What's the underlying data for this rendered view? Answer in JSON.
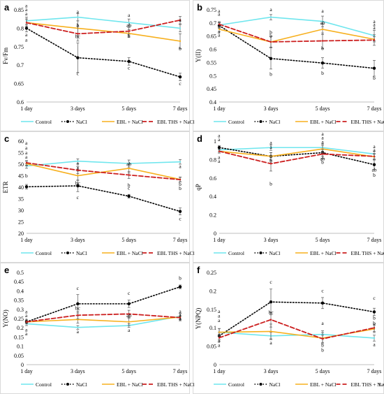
{
  "panels_meta": {
    "series_names": [
      "Control",
      "NaCl",
      "EBL + NaCl",
      "EBL THS + NaCl"
    ],
    "colors": {
      "control": "#6fe6ee",
      "nacl": "#000000",
      "ebl": "#f7b01e",
      "ebl_ths": "#cc1f1f"
    },
    "categories": [
      "1 day",
      "3 days",
      "5 days",
      "7 days"
    ]
  },
  "chart_data": [
    {
      "type": "line",
      "letter": "a",
      "ylabel": "Fv/Fm",
      "categories": [
        "1 day",
        "3 days",
        "5 days",
        "7 days"
      ],
      "ylim": [
        0.6,
        0.85
      ],
      "yticks": [
        0.6,
        0.65,
        0.7,
        0.75,
        0.8,
        0.85
      ],
      "series": [
        {
          "name": "Control",
          "values": [
            0.82,
            0.83,
            0.815,
            0.8
          ],
          "errors": [
            0.01,
            0.01,
            0.01,
            0.01
          ]
        },
        {
          "name": "NaCl",
          "values": [
            0.8,
            0.72,
            0.71,
            0.668
          ],
          "errors": [
            0.01,
            0.04,
            0.01,
            0.01
          ]
        },
        {
          "name": "EBL + NaCl",
          "values": [
            0.815,
            0.8,
            0.786,
            0.765
          ],
          "errors": [
            0.01,
            0.02,
            0.01,
            0.02
          ]
        },
        {
          "name": "EBL THS + NaCl",
          "values": [
            0.815,
            0.785,
            0.792,
            0.822
          ],
          "errors": [
            0.01,
            0.02,
            0.01,
            0.01
          ]
        }
      ],
      "annotations": [
        {
          "x": 0,
          "y": 0.857,
          "text": "a"
        },
        {
          "x": 0,
          "y": 0.846,
          "text": "a"
        },
        {
          "x": 0,
          "y": 0.835,
          "text": "a"
        },
        {
          "x": 0,
          "y": 0.778,
          "text": "a"
        },
        {
          "x": 0,
          "y": 0.764,
          "text": "a"
        },
        {
          "x": 1,
          "y": 0.841,
          "text": "a"
        },
        {
          "x": 1,
          "y": 0.804,
          "text": "b"
        },
        {
          "x": 1,
          "y": 0.773,
          "text": "bc"
        },
        {
          "x": 1,
          "y": 0.673,
          "text": "c"
        },
        {
          "x": 2,
          "y": 0.831,
          "text": "a"
        },
        {
          "x": 2,
          "y": 0.804,
          "text": "ab"
        },
        {
          "x": 2,
          "y": 0.774,
          "text": "b"
        },
        {
          "x": 2,
          "y": 0.688,
          "text": "c"
        },
        {
          "x": 3,
          "y": 0.818,
          "text": "a"
        },
        {
          "x": 3,
          "y": 0.74,
          "text": "b"
        },
        {
          "x": 3,
          "y": 0.645,
          "text": "c"
        }
      ]
    },
    {
      "type": "line",
      "letter": "b",
      "ylabel": "Y(II)",
      "categories": [
        "1 day",
        "3 days",
        "5 days",
        "7 days"
      ],
      "ylim": [
        0.4,
        0.75
      ],
      "yticks": [
        0.4,
        0.45,
        0.5,
        0.55,
        0.6,
        0.65,
        0.7,
        0.75
      ],
      "series": [
        {
          "name": "Control",
          "values": [
            0.692,
            0.722,
            0.706,
            0.652
          ],
          "errors": [
            0.01,
            0.01,
            0.02,
            0.02
          ]
        },
        {
          "name": "NaCl",
          "values": [
            0.69,
            0.565,
            0.548,
            0.528
          ],
          "errors": [
            0.01,
            0.04,
            0.02,
            0.03
          ]
        },
        {
          "name": "EBL + NaCl",
          "values": [
            0.676,
            0.628,
            0.676,
            0.638
          ],
          "errors": [
            0.01,
            0.02,
            0.02,
            0.01
          ]
        },
        {
          "name": "EBL THS + NaCl",
          "values": [
            0.695,
            0.628,
            0.632,
            0.635
          ],
          "errors": [
            0.01,
            0.02,
            0.03,
            0.02
          ]
        }
      ],
      "annotations": [
        {
          "x": 0,
          "y": 0.74,
          "text": "a"
        },
        {
          "x": 0,
          "y": 0.728,
          "text": "a"
        },
        {
          "x": 0,
          "y": 0.66,
          "text": "a"
        },
        {
          "x": 0,
          "y": 0.648,
          "text": "a"
        },
        {
          "x": 1,
          "y": 0.745,
          "text": "a"
        },
        {
          "x": 1,
          "y": 0.658,
          "text": "b"
        },
        {
          "x": 1,
          "y": 0.645,
          "text": "b"
        },
        {
          "x": 1,
          "y": 0.5,
          "text": "b"
        },
        {
          "x": 2,
          "y": 0.74,
          "text": "a"
        },
        {
          "x": 2,
          "y": 0.694,
          "text": "ab"
        },
        {
          "x": 2,
          "y": 0.597,
          "text": "b"
        },
        {
          "x": 2,
          "y": 0.504,
          "text": "b"
        },
        {
          "x": 3,
          "y": 0.7,
          "text": "a"
        },
        {
          "x": 3,
          "y": 0.688,
          "text": "a"
        },
        {
          "x": 3,
          "y": 0.676,
          "text": "a"
        },
        {
          "x": 3,
          "y": 0.485,
          "text": "b"
        }
      ]
    },
    {
      "type": "line",
      "letter": "c",
      "ylabel": "ETR",
      "categories": [
        "1 day",
        "3 days",
        "5 days",
        "7 days"
      ],
      "ylim": [
        20,
        60
      ],
      "yticks": [
        20,
        25,
        30,
        35,
        40,
        45,
        50,
        55,
        60
      ],
      "series": [
        {
          "name": "Control",
          "values": [
            49.2,
            51.3,
            50.3,
            51.0
          ],
          "errors": [
            1,
            1,
            1.5,
            1
          ]
        },
        {
          "name": "NaCl",
          "values": [
            40.2,
            40.6,
            36.1,
            29.5
          ],
          "errors": [
            1,
            2.5,
            0.8,
            1.5
          ]
        },
        {
          "name": "EBL + NaCl",
          "values": [
            50.2,
            45.0,
            48.2,
            43.4
          ],
          "errors": [
            1,
            2,
            2,
            1
          ]
        },
        {
          "name": "EBL THS + NaCl",
          "values": [
            50.6,
            47.4,
            45.3,
            43.3
          ],
          "errors": [
            1,
            1.5,
            1.5,
            1
          ]
        }
      ],
      "annotations": [
        {
          "x": 0,
          "y": 58.5,
          "text": "a"
        },
        {
          "x": 0,
          "y": 56.4,
          "text": "a"
        },
        {
          "x": 0,
          "y": 54.3,
          "text": "a"
        },
        {
          "x": 0,
          "y": 52.4,
          "text": "a"
        },
        {
          "x": 0,
          "y": 44.3,
          "text": "b"
        },
        {
          "x": 1,
          "y": 49.6,
          "text": "a"
        },
        {
          "x": 1,
          "y": 47.8,
          "text": "a"
        },
        {
          "x": 1,
          "y": 41.0,
          "text": "bc"
        },
        {
          "x": 1,
          "y": 34.9,
          "text": "c"
        },
        {
          "x": 2,
          "y": 49.4,
          "text": "ab"
        },
        {
          "x": 2,
          "y": 40.2,
          "text": "b"
        },
        {
          "x": 2,
          "y": 39.0,
          "text": "c"
        },
        {
          "x": 3,
          "y": 48.3,
          "text": "a"
        },
        {
          "x": 3,
          "y": 40.6,
          "text": "b"
        },
        {
          "x": 3,
          "y": 38.8,
          "text": "b"
        },
        {
          "x": 3,
          "y": 25.6,
          "text": "c"
        }
      ]
    },
    {
      "type": "line",
      "letter": "d",
      "ylabel": "qP",
      "categories": [
        "1 day",
        "3 days",
        "5 days",
        "7 days"
      ],
      "ylim": [
        0,
        1
      ],
      "yticks": [
        0,
        0.2,
        0.4,
        0.6,
        0.8,
        1
      ],
      "series": [
        {
          "name": "Control",
          "values": [
            0.905,
            0.93,
            0.93,
            0.86
          ],
          "errors": [
            0.02,
            0.03,
            0.04,
            0.03
          ]
        },
        {
          "name": "NaCl",
          "values": [
            0.93,
            0.835,
            0.875,
            0.745
          ],
          "errors": [
            0.02,
            0.04,
            0.04,
            0.05
          ]
        },
        {
          "name": "EBL + NaCl",
          "values": [
            0.89,
            0.835,
            0.915,
            0.83
          ],
          "errors": [
            0.02,
            0.04,
            0.04,
            0.03
          ]
        },
        {
          "name": "EBL THS + NaCl",
          "values": [
            0.89,
            0.755,
            0.86,
            0.835
          ],
          "errors": [
            0.02,
            0.08,
            0.05,
            0.03
          ]
        }
      ],
      "annotations": [
        {
          "x": 0,
          "y": 1.04,
          "text": "a"
        },
        {
          "x": 0,
          "y": 1.0,
          "text": "a"
        },
        {
          "x": 0,
          "y": 0.805,
          "text": "a"
        },
        {
          "x": 0,
          "y": 0.765,
          "text": "a"
        },
        {
          "x": 1,
          "y": 0.965,
          "text": "a"
        },
        {
          "x": 1,
          "y": 0.915,
          "text": "a"
        },
        {
          "x": 1,
          "y": 0.77,
          "text": "b"
        },
        {
          "x": 1,
          "y": 0.52,
          "text": "b"
        },
        {
          "x": 2,
          "y": 1.06,
          "text": "a"
        },
        {
          "x": 2,
          "y": 1.02,
          "text": "a"
        },
        {
          "x": 2,
          "y": 0.975,
          "text": "a"
        },
        {
          "x": 2,
          "y": 0.79,
          "text": "ab"
        },
        {
          "x": 2,
          "y": 0.755,
          "text": "b"
        },
        {
          "x": 3,
          "y": 0.925,
          "text": "a"
        },
        {
          "x": 3,
          "y": 0.885,
          "text": "a"
        },
        {
          "x": 3,
          "y": 0.67,
          "text": "ab"
        },
        {
          "x": 3,
          "y": 0.615,
          "text": "b"
        }
      ]
    },
    {
      "type": "line",
      "letter": "e",
      "ylabel": "Y(NO)",
      "categories": [
        "1 day",
        "3 days",
        "5 days",
        "7 days"
      ],
      "ylim": [
        0,
        0.5
      ],
      "yticks": [
        0,
        0.05,
        0.1,
        0.15,
        0.2,
        0.25,
        0.3,
        0.35,
        0.4,
        0.45,
        0.5
      ],
      "series": [
        {
          "name": "Control",
          "values": [
            0.222,
            0.202,
            0.212,
            0.262
          ],
          "errors": [
            0.01,
            0.01,
            0.01,
            0.015
          ]
        },
        {
          "name": "NaCl",
          "values": [
            0.232,
            0.33,
            0.33,
            0.422
          ],
          "errors": [
            0.01,
            0.05,
            0.02,
            0.01
          ]
        },
        {
          "name": "EBL + NaCl",
          "values": [
            0.232,
            0.245,
            0.232,
            0.258
          ],
          "errors": [
            0.01,
            0.02,
            0.02,
            0.02
          ]
        },
        {
          "name": "EBL THS + NaCl",
          "values": [
            0.232,
            0.268,
            0.275,
            0.255
          ],
          "errors": [
            0.01,
            0.02,
            0.02,
            0.01
          ]
        }
      ],
      "annotations": [
        {
          "x": 0,
          "y": 0.278,
          "text": "a"
        },
        {
          "x": 0,
          "y": 0.257,
          "text": "a"
        },
        {
          "x": 0,
          "y": 0.237,
          "text": "a"
        },
        {
          "x": 0,
          "y": 0.18,
          "text": "a"
        },
        {
          "x": 0,
          "y": 0.16,
          "text": "a"
        },
        {
          "x": 1,
          "y": 0.405,
          "text": "c"
        },
        {
          "x": 1,
          "y": 0.297,
          "text": "bc"
        },
        {
          "x": 1,
          "y": 0.17,
          "text": "a"
        },
        {
          "x": 2,
          "y": 0.378,
          "text": "c"
        },
        {
          "x": 2,
          "y": 0.258,
          "text": "ab"
        },
        {
          "x": 2,
          "y": 0.178,
          "text": "a"
        },
        {
          "x": 3,
          "y": 0.46,
          "text": "b"
        },
        {
          "x": 3,
          "y": 0.28,
          "text": "a"
        },
        {
          "x": 3,
          "y": 0.26,
          "text": "a"
        },
        {
          "x": 3,
          "y": 0.24,
          "text": "a"
        }
      ]
    },
    {
      "type": "line",
      "letter": "f",
      "ylabel": "Y(NPQ)",
      "categories": [
        "1 day",
        "3 days",
        "5 days",
        "7 days"
      ],
      "ylim": [
        0,
        0.25
      ],
      "yticks": [
        0,
        0.05,
        0.1,
        0.15,
        0.2,
        0.25
      ],
      "series": [
        {
          "name": "Control",
          "values": [
            0.088,
            0.078,
            0.082,
            0.072
          ],
          "errors": [
            0.01,
            0.01,
            0.01,
            0.008
          ]
        },
        {
          "name": "NaCl",
          "values": [
            0.078,
            0.17,
            0.167,
            0.143
          ],
          "errors": [
            0.01,
            0.035,
            0.015,
            0.01
          ]
        },
        {
          "name": "EBL + NaCl",
          "values": [
            0.088,
            0.09,
            0.072,
            0.097
          ],
          "errors": [
            0.01,
            0.02,
            0.015,
            0.01
          ]
        },
        {
          "name": "EBL THS + NaCl",
          "values": [
            0.073,
            0.122,
            0.07,
            0.1
          ],
          "errors": [
            0.01,
            0.02,
            0.01,
            0.01
          ]
        }
      ],
      "annotations": [
        {
          "x": 0,
          "y": 0.14,
          "text": "a"
        },
        {
          "x": 0,
          "y": 0.128,
          "text": "a"
        },
        {
          "x": 0,
          "y": 0.116,
          "text": "a"
        },
        {
          "x": 0,
          "y": 0.06,
          "text": "a"
        },
        {
          "x": 0,
          "y": 0.048,
          "text": "a"
        },
        {
          "x": 1,
          "y": 0.22,
          "text": "c"
        },
        {
          "x": 1,
          "y": 0.137,
          "text": "bc"
        },
        {
          "x": 1,
          "y": 0.055,
          "text": "a"
        },
        {
          "x": 2,
          "y": 0.196,
          "text": "c"
        },
        {
          "x": 2,
          "y": 0.108,
          "text": "a"
        },
        {
          "x": 2,
          "y": 0.048,
          "text": "b"
        },
        {
          "x": 2,
          "y": 0.035,
          "text": "b"
        },
        {
          "x": 3,
          "y": 0.176,
          "text": "c"
        },
        {
          "x": 3,
          "y": 0.122,
          "text": "b"
        },
        {
          "x": 3,
          "y": 0.108,
          "text": "b"
        },
        {
          "x": 3,
          "y": 0.05,
          "text": "a"
        }
      ]
    }
  ],
  "legend_extra_mark": "1"
}
